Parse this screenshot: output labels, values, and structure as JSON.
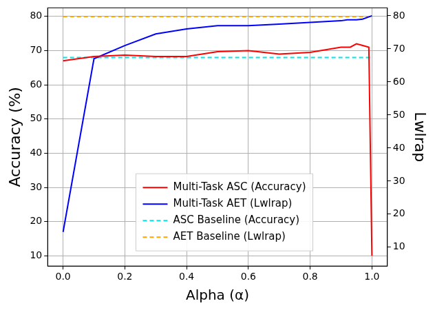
{
  "chart_data": {
    "type": "line",
    "x_label": "Alpha (α)",
    "y_label": "Accuracy (%)",
    "y2_label": "Lwlrap",
    "xlim": [
      -0.05,
      1.05
    ],
    "xticks": [
      {
        "value": 0,
        "label": "0.0"
      },
      {
        "value": 0.2,
        "label": "0.2"
      },
      {
        "value": 0.4,
        "label": "0.4"
      },
      {
        "value": 0.6,
        "label": "0.6"
      },
      {
        "value": 0.8,
        "label": "0.8"
      },
      {
        "value": 1,
        "label": "1.0"
      }
    ],
    "ylim": [
      7,
      82.5
    ],
    "yticks": [
      10,
      20,
      30,
      40,
      50,
      60,
      70,
      80
    ],
    "y2lim": [
      4.3,
      82.4
    ],
    "y2ticks": [
      10,
      20,
      30,
      40,
      50,
      60,
      70,
      80
    ],
    "grid": true,
    "legend": "lower center",
    "series": [
      {
        "name": "Multi-Task ASC (Accuracy)",
        "color": "#ff0000",
        "line_style": "solid",
        "x": [
          0,
          0.1,
          0.2,
          0.3,
          0.4,
          0.5,
          0.6,
          0.7,
          0.8,
          0.9,
          0.93,
          0.95,
          0.97,
          0.99,
          1.0
        ],
        "values": [
          67,
          68.3,
          68.7,
          68.3,
          68.3,
          69.7,
          70,
          69,
          69.5,
          71,
          71,
          72,
          71.5,
          71,
          10
        ]
      },
      {
        "name": "Multi-Task AET (Lwlrap)",
        "color": "#0000ff",
        "line_style": "solid",
        "axis": "y2",
        "x": [
          0,
          0.1,
          0.2,
          0.3,
          0.4,
          0.5,
          0.6,
          0.7,
          0.8,
          0.9,
          0.92,
          0.95,
          0.97,
          1.0
        ],
        "values": [
          14.6,
          67,
          71,
          74.5,
          76,
          77,
          77,
          77.5,
          78,
          78.5,
          78.8,
          78.8,
          79,
          80
        ]
      },
      {
        "name": "ASC Baseline (Accuracy)",
        "color": "#00e5ee",
        "line_style": "dashed",
        "x": [
          0,
          1.0
        ],
        "values": [
          68,
          68
        ]
      },
      {
        "name": "AET Baseline (Lwlrap)",
        "color": "#ffa500",
        "line_style": "dashed",
        "axis": "y2",
        "x": [
          0,
          1.0
        ],
        "values": [
          79.8,
          79.8
        ]
      }
    ]
  }
}
